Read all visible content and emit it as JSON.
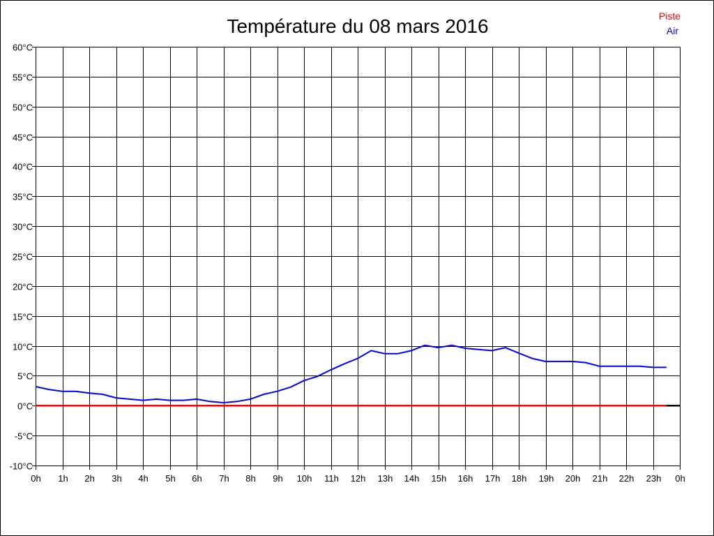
{
  "chart_data": {
    "type": "line",
    "title": "Température du 08 mars 2016",
    "xlabel": "",
    "ylabel": "",
    "x_ticks": [
      "0h",
      "1h",
      "2h",
      "3h",
      "4h",
      "5h",
      "6h",
      "7h",
      "8h",
      "9h",
      "10h",
      "11h",
      "12h",
      "13h",
      "14h",
      "15h",
      "16h",
      "17h",
      "18h",
      "19h",
      "20h",
      "21h",
      "22h",
      "23h",
      "0h"
    ],
    "y_ticks": [
      "60°C",
      "55°C",
      "50°C",
      "45°C",
      "40°C",
      "35°C",
      "30°C",
      "25°C",
      "20°C",
      "15°C",
      "10°C",
      "5°C",
      "0°C",
      "-5°C",
      "-10°C"
    ],
    "xlim": [
      0,
      24
    ],
    "ylim": [
      -10,
      60
    ],
    "grid": true,
    "legend": {
      "placement": "top-right",
      "entries": [
        "Piste",
        "Air"
      ]
    },
    "series": [
      {
        "name": "Piste",
        "color": "#ff0000",
        "x": [
          0,
          23.5
        ],
        "y": [
          0,
          0
        ]
      },
      {
        "name": "Air",
        "color": "#0000ff",
        "x": [
          0,
          0.5,
          1,
          1.5,
          2,
          2.5,
          3,
          3.5,
          4,
          4.5,
          5,
          5.5,
          6,
          6.5,
          7,
          7.5,
          8,
          8.5,
          9,
          9.5,
          10,
          10.5,
          11,
          11.5,
          12,
          12.5,
          13,
          13.5,
          14,
          14.5,
          15,
          15.5,
          16,
          16.5,
          17,
          17.5,
          18,
          18.5,
          19,
          19.5,
          20,
          20.5,
          21,
          21.5,
          22,
          22.5,
          23,
          23.5
        ],
        "y": [
          3.2,
          2.7,
          2.4,
          2.4,
          2.1,
          1.9,
          1.3,
          1.1,
          0.9,
          1.1,
          0.9,
          0.9,
          1.1,
          0.7,
          0.5,
          0.7,
          1.1,
          1.9,
          2.4,
          3.1,
          4.2,
          4.9,
          6.0,
          7.0,
          7.9,
          9.2,
          8.7,
          8.7,
          9.2,
          10.1,
          9.7,
          10.1,
          9.6,
          9.4,
          9.2,
          9.7,
          8.8,
          7.9,
          7.4,
          7.4,
          7.4,
          7.2,
          6.6,
          6.6,
          6.6,
          6.6,
          6.4,
          6.4
        ]
      }
    ],
    "baseline_extension": {
      "x": [
        23.5,
        24
      ],
      "y": [
        0,
        0
      ],
      "color": "#000000"
    }
  }
}
